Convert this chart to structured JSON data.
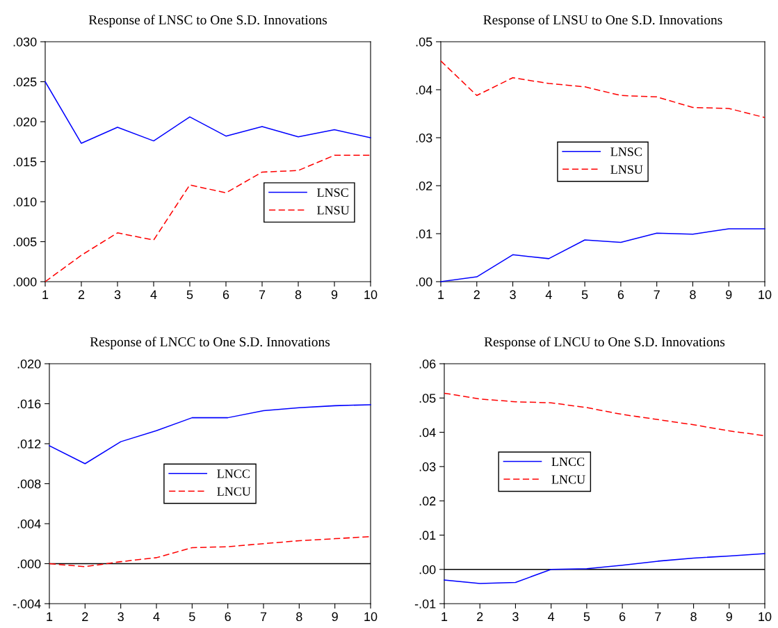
{
  "chart_data": [
    {
      "type": "line",
      "title": "Response of LNSC to One S.D. Innovations",
      "x": [
        1,
        2,
        3,
        4,
        5,
        6,
        7,
        8,
        9,
        10
      ],
      "xlim": [
        1,
        10
      ],
      "xticks": [
        1,
        2,
        3,
        4,
        5,
        6,
        7,
        8,
        9,
        10
      ],
      "ylim": [
        0,
        0.03
      ],
      "yticks": [
        {
          "value": 0,
          "label": ".000"
        },
        {
          "value": 0.005,
          "label": ".005"
        },
        {
          "value": 0.01,
          "label": ".010"
        },
        {
          "value": 0.015,
          "label": ".015"
        },
        {
          "value": 0.02,
          "label": ".020"
        },
        {
          "value": 0.025,
          "label": ".025"
        },
        {
          "value": 0.03,
          "label": ".030"
        }
      ],
      "legend": "right",
      "grid": false,
      "series": [
        {
          "name": "LNSC",
          "color": "#0000ff",
          "line_style": "solid",
          "values": [
            0.025,
            0.0173,
            0.0193,
            0.0176,
            0.0206,
            0.0182,
            0.0194,
            0.0181,
            0.019,
            0.018
          ]
        },
        {
          "name": "LNSU",
          "color": "#ff0000",
          "line_style": "dashed",
          "values": [
            0,
            0.0033,
            0.0061,
            0.0052,
            0.0121,
            0.0111,
            0.0137,
            0.0139,
            0.0158,
            0.0158
          ]
        }
      ]
    },
    {
      "type": "line",
      "title": "Response of LNSU to One S.D. Innovations",
      "x": [
        1,
        2,
        3,
        4,
        5,
        6,
        7,
        8,
        9,
        10
      ],
      "xlim": [
        1,
        10
      ],
      "xticks": [
        1,
        2,
        3,
        4,
        5,
        6,
        7,
        8,
        9,
        10
      ],
      "ylim": [
        0,
        0.05
      ],
      "yticks": [
        {
          "value": 0,
          "label": ".00"
        },
        {
          "value": 0.01,
          "label": ".01"
        },
        {
          "value": 0.02,
          "label": ".02"
        },
        {
          "value": 0.03,
          "label": ".03"
        },
        {
          "value": 0.04,
          "label": ".04"
        },
        {
          "value": 0.05,
          "label": ".05"
        }
      ],
      "legend": "center",
      "grid": false,
      "series": [
        {
          "name": "LNSC",
          "color": "#0000ff",
          "line_style": "solid",
          "values": [
            0,
            0.001,
            0.0056,
            0.0048,
            0.0087,
            0.0082,
            0.0101,
            0.0099,
            0.011,
            0.011
          ]
        },
        {
          "name": "LNSU",
          "color": "#ff0000",
          "line_style": "dashed",
          "values": [
            0.046,
            0.0388,
            0.0425,
            0.0413,
            0.0406,
            0.0388,
            0.0385,
            0.0363,
            0.0361,
            0.0342
          ]
        }
      ]
    },
    {
      "type": "line",
      "title": "Response of LNCC to One S.D. Innovations",
      "x": [
        1,
        2,
        3,
        4,
        5,
        6,
        7,
        8,
        9,
        10
      ],
      "xlim": [
        1,
        10
      ],
      "xticks": [
        1,
        2,
        3,
        4,
        5,
        6,
        7,
        8,
        9,
        10
      ],
      "ylim": [
        -0.004,
        0.02
      ],
      "yticks": [
        {
          "value": -0.004,
          "label": "-.004"
        },
        {
          "value": 0,
          "label": ".000"
        },
        {
          "value": 0.004,
          "label": ".004"
        },
        {
          "value": 0.008,
          "label": ".008"
        },
        {
          "value": 0.012,
          "label": ".012"
        },
        {
          "value": 0.016,
          "label": ".016"
        },
        {
          "value": 0.02,
          "label": ".020"
        }
      ],
      "legend": "center",
      "grid": false,
      "ref_lines": [
        {
          "axis": "y",
          "value": 0,
          "color": "#000000"
        }
      ],
      "series": [
        {
          "name": "LNCC",
          "color": "#0000ff",
          "line_style": "solid",
          "values": [
            0.0118,
            0.01,
            0.0122,
            0.0133,
            0.0146,
            0.0146,
            0.0153,
            0.0156,
            0.0158,
            0.0159
          ]
        },
        {
          "name": "LNCU",
          "color": "#ff0000",
          "line_style": "dashed",
          "values": [
            0,
            -0.0003,
            0.0002,
            0.0006,
            0.0016,
            0.0017,
            0.002,
            0.0023,
            0.0025,
            0.0027
          ]
        }
      ]
    },
    {
      "type": "line",
      "title": "Response of LNCU to One S.D. Innovations",
      "x": [
        1,
        2,
        3,
        4,
        5,
        6,
        7,
        8,
        9,
        10
      ],
      "xlim": [
        1,
        10
      ],
      "xticks": [
        1,
        2,
        3,
        4,
        5,
        6,
        7,
        8,
        9,
        10
      ],
      "ylim": [
        -0.01,
        0.06
      ],
      "yticks": [
        {
          "value": -0.01,
          "label": "-.01"
        },
        {
          "value": 0,
          "label": ".00"
        },
        {
          "value": 0.01,
          "label": ".01"
        },
        {
          "value": 0.02,
          "label": ".02"
        },
        {
          "value": 0.03,
          "label": ".03"
        },
        {
          "value": 0.04,
          "label": ".04"
        },
        {
          "value": 0.05,
          "label": ".05"
        },
        {
          "value": 0.06,
          "label": ".06"
        }
      ],
      "legend": "left",
      "grid": false,
      "ref_lines": [
        {
          "axis": "y",
          "value": 0,
          "color": "#000000"
        }
      ],
      "series": [
        {
          "name": "LNCC",
          "color": "#0000ff",
          "line_style": "solid",
          "values": [
            -0.0031,
            -0.0041,
            -0.0038,
            0,
            0.0002,
            0.0012,
            0.0024,
            0.0033,
            0.0039,
            0.0046
          ]
        },
        {
          "name": "LNCU",
          "color": "#ff0000",
          "line_style": "dashed",
          "values": [
            0.0514,
            0.0497,
            0.0489,
            0.0486,
            0.0472,
            0.0452,
            0.0437,
            0.0422,
            0.0404,
            0.039
          ]
        }
      ]
    }
  ]
}
